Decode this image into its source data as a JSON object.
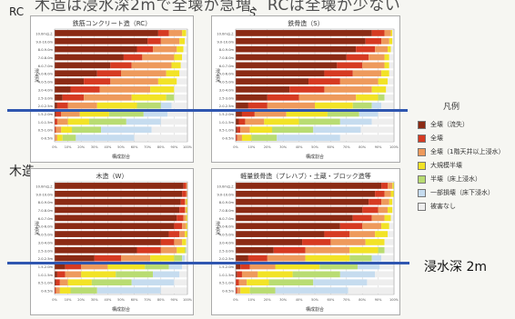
{
  "title": "木造は浸水深2mで全壊が急増、RCは全壊が少ない",
  "labels": {
    "rc": "RC",
    "s": "S",
    "wood": "木造",
    "depth": "浸水深 2m"
  },
  "legend": {
    "title": "凡例",
    "items": [
      {
        "label": "全壊（流失）",
        "color": "#8b2a14"
      },
      {
        "label": "全壊",
        "color": "#d63a22"
      },
      {
        "label": "全壊（1階天井以上浸水）",
        "color": "#ee9a5c"
      },
      {
        "label": "大規模半壊",
        "color": "#f2e326"
      },
      {
        "label": "半壊（床上浸水）",
        "color": "#b9dc72"
      },
      {
        "label": "一部損壊（床下浸水）",
        "color": "#c6dcef"
      },
      {
        "label": "被害なし",
        "color": "#eeeeee"
      }
    ]
  },
  "chart_data": [
    {
      "type": "bar",
      "orientation": "horizontal",
      "stacked": true,
      "title": "鉄筋コンクリート造（RC）",
      "ylabel": "浸水深",
      "xlabel": "構成割合",
      "xlim": [
        0,
        100
      ],
      "xticks": [
        "0%",
        "10%",
        "20%",
        "30%",
        "40%",
        "50%",
        "60%",
        "70%",
        "80%",
        "90%",
        "100%"
      ],
      "categories": [
        "10.0m以上",
        "9.0-10.0m",
        "8.0-9.0m",
        "7.0-8.0m",
        "6.0-7.0m",
        "5.0-6.0m",
        "4.0-5.0m",
        "3.0-4.0m",
        "2.5-3.0m",
        "2.0-2.5m",
        "1.5-2.0m",
        "1.0-1.5m",
        "0.5-1.0m",
        "0-0.5m"
      ],
      "series_values": [
        [
          78,
          8,
          10,
          3,
          0,
          0,
          1
        ],
        [
          70,
          10,
          14,
          4,
          0,
          0,
          2
        ],
        [
          62,
          12,
          18,
          5,
          0,
          0,
          3
        ],
        [
          52,
          14,
          24,
          6,
          0,
          0,
          4
        ],
        [
          42,
          16,
          30,
          7,
          0,
          0,
          5
        ],
        [
          32,
          18,
          34,
          10,
          0,
          0,
          6
        ],
        [
          22,
          20,
          36,
          14,
          0,
          0,
          8
        ],
        [
          12,
          22,
          38,
          18,
          0,
          0,
          10
        ],
        [
          6,
          16,
          36,
          26,
          6,
          0,
          10
        ],
        [
          2,
          8,
          22,
          30,
          18,
          8,
          12
        ],
        [
          1,
          4,
          14,
          22,
          26,
          18,
          15
        ],
        [
          0,
          2,
          8,
          16,
          28,
          26,
          20
        ],
        [
          0,
          1,
          4,
          8,
          22,
          38,
          27
        ],
        [
          0,
          0,
          2,
          4,
          10,
          44,
          40
        ]
      ]
    },
    {
      "type": "bar",
      "orientation": "horizontal",
      "stacked": true,
      "title": "鉄骨造（S）",
      "ylabel": "浸水深",
      "xlabel": "構成割合",
      "xlim": [
        0,
        100
      ],
      "xticks": [
        "0%",
        "10%",
        "20%",
        "30%",
        "40%",
        "50%",
        "60%",
        "70%",
        "80%",
        "90%",
        "100%"
      ],
      "categories": [
        "10.0m以上",
        "9.0-10.0m",
        "8.0-9.0m",
        "7.0-8.0m",
        "6.0-7.0m",
        "5.0-6.0m",
        "4.0-5.0m",
        "3.0-4.0m",
        "2.5-3.0m",
        "2.0-2.5m",
        "1.5-2.0m",
        "1.0-1.5m",
        "0.5-1.0m",
        "0-0.5m"
      ],
      "series_values": [
        [
          86,
          8,
          4,
          1,
          0,
          0,
          1
        ],
        [
          82,
          10,
          5,
          2,
          0,
          0,
          1
        ],
        [
          76,
          12,
          8,
          2,
          0,
          0,
          2
        ],
        [
          70,
          14,
          10,
          3,
          0,
          0,
          3
        ],
        [
          64,
          16,
          14,
          3,
          0,
          0,
          3
        ],
        [
          56,
          18,
          18,
          5,
          0,
          0,
          3
        ],
        [
          46,
          20,
          24,
          6,
          0,
          0,
          4
        ],
        [
          34,
          22,
          30,
          9,
          0,
          0,
          5
        ],
        [
          20,
          20,
          36,
          14,
          4,
          0,
          6
        ],
        [
          8,
          12,
          30,
          24,
          12,
          6,
          8
        ],
        [
          4,
          8,
          20,
          26,
          20,
          12,
          10
        ],
        [
          2,
          4,
          12,
          22,
          26,
          20,
          14
        ],
        [
          1,
          2,
          6,
          14,
          26,
          30,
          21
        ],
        [
          0,
          1,
          3,
          6,
          16,
          40,
          34
        ]
      ]
    },
    {
      "type": "bar",
      "orientation": "horizontal",
      "stacked": true,
      "title": "木造（W）",
      "ylabel": "浸水深",
      "xlabel": "構成割合",
      "xlim": [
        0,
        100
      ],
      "xticks": [
        "0%",
        "10%",
        "20%",
        "30%",
        "40%",
        "50%",
        "60%",
        "70%",
        "80%",
        "90%",
        "100%"
      ],
      "categories": [
        "10.0m以上",
        "9.0-10.0m",
        "8.0-9.0m",
        "7.0-8.0m",
        "6.0-7.0m",
        "5.0-6.0m",
        "4.0-5.0m",
        "3.0-4.0m",
        "2.5-3.0m",
        "2.0-2.5m",
        "1.5-2.0m",
        "1.0-1.5m",
        "0.5-1.0m",
        "0-0.5m"
      ],
      "series_values": [
        [
          97,
          2,
          1,
          0,
          0,
          0,
          0
        ],
        [
          96,
          3,
          1,
          0,
          0,
          0,
          0
        ],
        [
          95,
          3,
          1,
          1,
          0,
          0,
          0
        ],
        [
          94,
          4,
          1,
          1,
          0,
          0,
          0
        ],
        [
          92,
          5,
          2,
          1,
          0,
          0,
          0
        ],
        [
          90,
          6,
          3,
          1,
          0,
          0,
          0
        ],
        [
          86,
          8,
          4,
          2,
          0,
          0,
          0
        ],
        [
          80,
          10,
          6,
          3,
          0,
          0,
          1
        ],
        [
          62,
          18,
          12,
          6,
          1,
          0,
          1
        ],
        [
          30,
          20,
          22,
          18,
          6,
          2,
          2
        ],
        [
          8,
          12,
          20,
          28,
          18,
          10,
          4
        ],
        [
          2,
          6,
          12,
          26,
          28,
          20,
          6
        ],
        [
          1,
          3,
          6,
          18,
          30,
          32,
          10
        ],
        [
          0,
          1,
          3,
          8,
          20,
          48,
          20
        ]
      ]
    },
    {
      "type": "bar",
      "orientation": "horizontal",
      "stacked": true,
      "title": "軽量鉄骨造（プレハブ）・土蔵・ブロック造等",
      "ylabel": "浸水深",
      "xlabel": "構成割合",
      "xlim": [
        0,
        100
      ],
      "xticks": [
        "0%",
        "10%",
        "20%",
        "30%",
        "40%",
        "50%",
        "60%",
        "70%",
        "80%",
        "90%",
        "100%"
      ],
      "categories": [
        "10.0m以上",
        "9.0-10.0m",
        "8.0-9.0m",
        "7.0-8.0m",
        "6.0-7.0m",
        "5.0-6.0m",
        "4.0-5.0m",
        "3.0-4.0m",
        "2.5-3.0m",
        "2.0-2.5m",
        "1.5-2.0m",
        "1.0-1.5m",
        "0.5-1.0m",
        "0-0.5m"
      ],
      "series_values": [
        [
          92,
          4,
          3,
          1,
          0,
          0,
          0
        ],
        [
          88,
          6,
          4,
          2,
          0,
          0,
          0
        ],
        [
          84,
          8,
          5,
          2,
          0,
          0,
          1
        ],
        [
          80,
          10,
          6,
          3,
          0,
          0,
          1
        ],
        [
          74,
          12,
          8,
          4,
          0,
          0,
          2
        ],
        [
          66,
          14,
          12,
          5,
          0,
          0,
          3
        ],
        [
          56,
          16,
          16,
          8,
          0,
          0,
          4
        ],
        [
          42,
          18,
          22,
          12,
          0,
          0,
          6
        ],
        [
          24,
          20,
          28,
          18,
          4,
          0,
          6
        ],
        [
          8,
          12,
          24,
          28,
          14,
          6,
          8
        ],
        [
          3,
          6,
          16,
          28,
          24,
          14,
          9
        ],
        [
          1,
          3,
          10,
          22,
          30,
          22,
          12
        ],
        [
          0,
          2,
          5,
          14,
          28,
          34,
          17
        ],
        [
          0,
          1,
          2,
          6,
          16,
          46,
          29
        ]
      ]
    }
  ]
}
